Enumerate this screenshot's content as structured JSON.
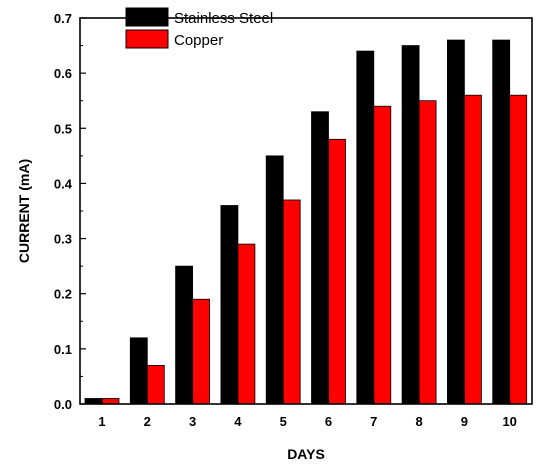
{
  "chart_data": {
    "type": "bar",
    "title": "",
    "xlabel": "DAYS",
    "ylabel": "CURRENT (mA)",
    "categories": [
      "1",
      "2",
      "3",
      "4",
      "5",
      "6",
      "7",
      "8",
      "9",
      "10"
    ],
    "series": [
      {
        "name": "Stainless Steel",
        "color": "#000000",
        "values": [
          0.01,
          0.12,
          0.25,
          0.36,
          0.45,
          0.53,
          0.64,
          0.65,
          0.66,
          0.66
        ]
      },
      {
        "name": "Copper",
        "color": "#ff0000",
        "values": [
          0.01,
          0.07,
          0.19,
          0.29,
          0.37,
          0.48,
          0.54,
          0.55,
          0.56,
          0.56
        ]
      }
    ],
    "ylim": [
      0,
      0.7
    ],
    "yticks": [
      "0.0",
      "0.1",
      "0.2",
      "0.3",
      "0.4",
      "0.5",
      "0.6",
      "0.7"
    ],
    "grid": false,
    "legend_position": "top-left"
  }
}
